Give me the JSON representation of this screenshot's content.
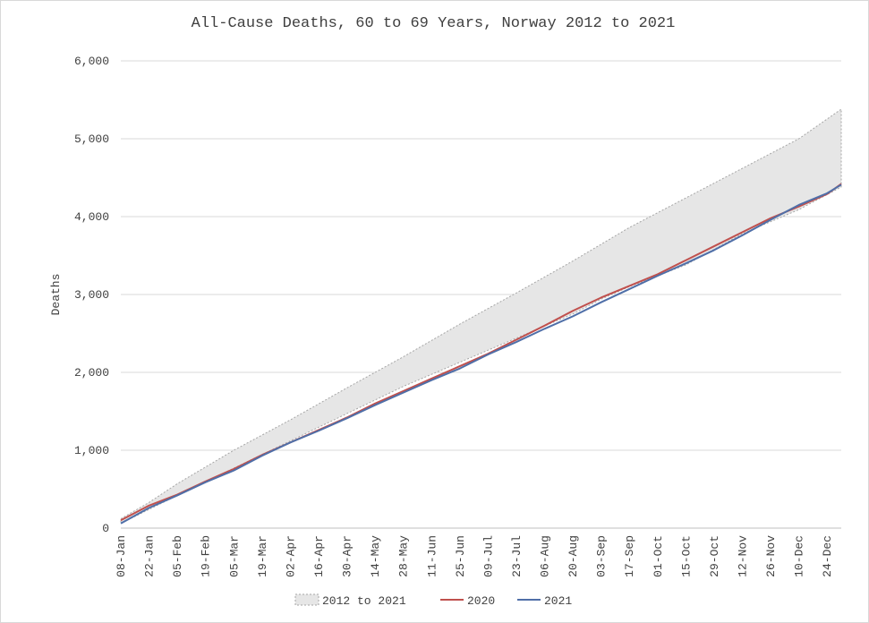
{
  "chart_data": {
    "type": "line",
    "title": "All-Cause Deaths, 60 to 69 Years, Norway 2012 to 2021",
    "xlabel": "",
    "ylabel": "Deaths",
    "ylim": [
      0,
      6000
    ],
    "y_ticks": [
      0,
      1000,
      2000,
      3000,
      4000,
      5000,
      6000
    ],
    "y_tick_labels": [
      "0",
      "1,000",
      "2,000",
      "3,000",
      "4,000",
      "5,000",
      "6,000"
    ],
    "grid": true,
    "legend_position": "bottom",
    "x_tick_labels": [
      "08-Jan",
      "22-Jan",
      "05-Feb",
      "19-Feb",
      "05-Mar",
      "19-Mar",
      "02-Apr",
      "16-Apr",
      "30-Apr",
      "14-May",
      "28-May",
      "11-Jun",
      "25-Jun",
      "09-Jul",
      "23-Jul",
      "06-Aug",
      "20-Aug",
      "03-Sep",
      "17-Sep",
      "01-Oct",
      "15-Oct",
      "29-Oct",
      "12-Nov",
      "26-Nov",
      "10-Dec",
      "24-Dec"
    ],
    "x_tick_weeks": [
      1,
      3,
      5,
      7,
      9,
      11,
      13,
      15,
      17,
      19,
      21,
      23,
      25,
      27,
      29,
      31,
      33,
      35,
      37,
      39,
      41,
      43,
      45,
      47,
      49,
      51
    ],
    "week_count": 52,
    "band": {
      "name": "2012 to 2021",
      "color": "#e6e6e6",
      "border_color": "#a6a6a6",
      "upper": [
        {
          "week": 1,
          "value": 120
        },
        {
          "week": 3,
          "value": 330
        },
        {
          "week": 5,
          "value": 570
        },
        {
          "week": 9,
          "value": 1000
        },
        {
          "week": 13,
          "value": 1390
        },
        {
          "week": 17,
          "value": 1800
        },
        {
          "week": 21,
          "value": 2200
        },
        {
          "week": 25,
          "value": 2620
        },
        {
          "week": 29,
          "value": 3020
        },
        {
          "week": 33,
          "value": 3430
        },
        {
          "week": 37,
          "value": 3860
        },
        {
          "week": 41,
          "value": 4240
        },
        {
          "week": 45,
          "value": 4620
        },
        {
          "week": 49,
          "value": 5000
        },
        {
          "week": 52,
          "value": 5380
        }
      ],
      "lower": [
        {
          "week": 1,
          "value": 60
        },
        {
          "week": 5,
          "value": 420
        },
        {
          "week": 9,
          "value": 770
        },
        {
          "week": 13,
          "value": 1120
        },
        {
          "week": 17,
          "value": 1470
        },
        {
          "week": 21,
          "value": 1820
        },
        {
          "week": 25,
          "value": 2130
        },
        {
          "week": 29,
          "value": 2440
        },
        {
          "week": 33,
          "value": 2750
        },
        {
          "week": 35,
          "value": 2940
        },
        {
          "week": 37,
          "value": 3100
        },
        {
          "week": 41,
          "value": 3380
        },
        {
          "week": 45,
          "value": 3780
        },
        {
          "week": 49,
          "value": 4090
        },
        {
          "week": 52,
          "value": 4380
        }
      ]
    },
    "series": [
      {
        "name": "2020",
        "color": "#c0504d",
        "points": [
          {
            "week": 1,
            "value": 100
          },
          {
            "week": 3,
            "value": 290
          },
          {
            "week": 5,
            "value": 430
          },
          {
            "week": 7,
            "value": 600
          },
          {
            "week": 9,
            "value": 760
          },
          {
            "week": 11,
            "value": 940
          },
          {
            "week": 13,
            "value": 1100
          },
          {
            "week": 15,
            "value": 1260
          },
          {
            "week": 17,
            "value": 1420
          },
          {
            "week": 19,
            "value": 1600
          },
          {
            "week": 21,
            "value": 1760
          },
          {
            "week": 23,
            "value": 1920
          },
          {
            "week": 25,
            "value": 2080
          },
          {
            "week": 27,
            "value": 2240
          },
          {
            "week": 29,
            "value": 2420
          },
          {
            "week": 31,
            "value": 2600
          },
          {
            "week": 33,
            "value": 2790
          },
          {
            "week": 35,
            "value": 2960
          },
          {
            "week": 37,
            "value": 3110
          },
          {
            "week": 39,
            "value": 3260
          },
          {
            "week": 41,
            "value": 3440
          },
          {
            "week": 43,
            "value": 3620
          },
          {
            "week": 45,
            "value": 3800
          },
          {
            "week": 47,
            "value": 3980
          },
          {
            "week": 49,
            "value": 4130
          },
          {
            "week": 51,
            "value": 4290
          },
          {
            "week": 52,
            "value": 4420
          }
        ]
      },
      {
        "name": "2021",
        "color": "#4f6fa8",
        "points": [
          {
            "week": 1,
            "value": 60
          },
          {
            "week": 3,
            "value": 260
          },
          {
            "week": 5,
            "value": 420
          },
          {
            "week": 7,
            "value": 590
          },
          {
            "week": 9,
            "value": 740
          },
          {
            "week": 11,
            "value": 930
          },
          {
            "week": 13,
            "value": 1100
          },
          {
            "week": 15,
            "value": 1250
          },
          {
            "week": 17,
            "value": 1410
          },
          {
            "week": 19,
            "value": 1580
          },
          {
            "week": 21,
            "value": 1740
          },
          {
            "week": 23,
            "value": 1900
          },
          {
            "week": 25,
            "value": 2050
          },
          {
            "week": 27,
            "value": 2230
          },
          {
            "week": 29,
            "value": 2390
          },
          {
            "week": 31,
            "value": 2560
          },
          {
            "week": 33,
            "value": 2720
          },
          {
            "week": 35,
            "value": 2900
          },
          {
            "week": 37,
            "value": 3070
          },
          {
            "week": 39,
            "value": 3240
          },
          {
            "week": 41,
            "value": 3400
          },
          {
            "week": 43,
            "value": 3570
          },
          {
            "week": 45,
            "value": 3760
          },
          {
            "week": 47,
            "value": 3960
          },
          {
            "week": 49,
            "value": 4150
          },
          {
            "week": 51,
            "value": 4300
          },
          {
            "week": 52,
            "value": 4410
          }
        ]
      }
    ]
  }
}
